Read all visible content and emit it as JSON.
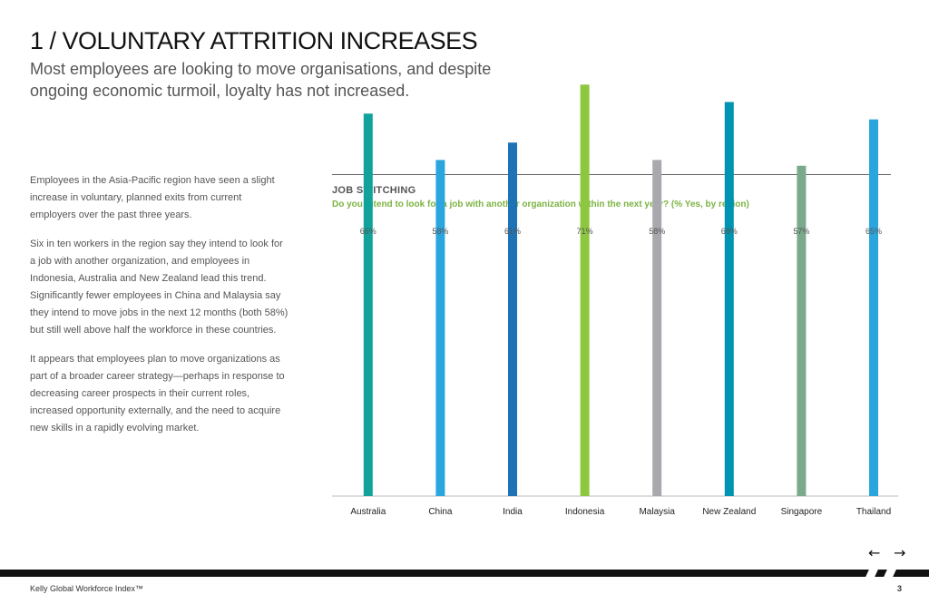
{
  "page": {
    "title": "1 / VOLUNTARY ATTRITION INCREASES",
    "subtitle": "Most employees are looking to move organisations, and despite ongoing economic turmoil, loyalty has not increased.",
    "paragraphs": [
      "Employees in the Asia-Pacific region have seen a slight increase in voluntary, planned exits from current employers over the past three years.",
      "Six in ten workers in the region say they intend to look for a job with another organization, and employees in Indonesia, Australia and New Zealand lead this trend. Significantly fewer employees in China and Malaysia say they intend to move jobs in the next 12 months (both 58%) but still well above half the workforce in these countries.",
      "It appears that employees plan to move organizations as part of a broader career strategy—perhaps in response to decreasing career prospects in their current roles, increased opportunity externally, and the need to acquire new skills in a rapidly evolving market."
    ]
  },
  "footer": {
    "brand": "Kelly Global Workforce Index™",
    "page_number": "3",
    "prev_icon": "arrow-left-icon",
    "next_icon": "arrow-right-icon",
    "prev_glyph": "←",
    "next_glyph": "→"
  },
  "chart_data": {
    "type": "bar",
    "label": "JOB SWITCHING",
    "question": "Do you intend to look for a job with another organization within the next year? (% Yes, by region)",
    "categories": [
      "Australia",
      "China",
      "India",
      "Indonesia",
      "Malaysia",
      "New Zealand",
      "Singapore",
      "Thailand"
    ],
    "values": [
      66,
      58,
      61,
      71,
      58,
      68,
      57,
      65
    ],
    "value_labels": [
      "66%",
      "58%",
      "61%",
      "71%",
      "58%",
      "68%",
      "57%",
      "65%"
    ],
    "colors": [
      "#11a29b",
      "#2ba5de",
      "#1e72b6",
      "#8dc63f",
      "#a7a9ac",
      "#0093b2",
      "#7ba98c",
      "#2ba5de"
    ],
    "ylim": [
      0,
      100
    ],
    "grid": false
  }
}
